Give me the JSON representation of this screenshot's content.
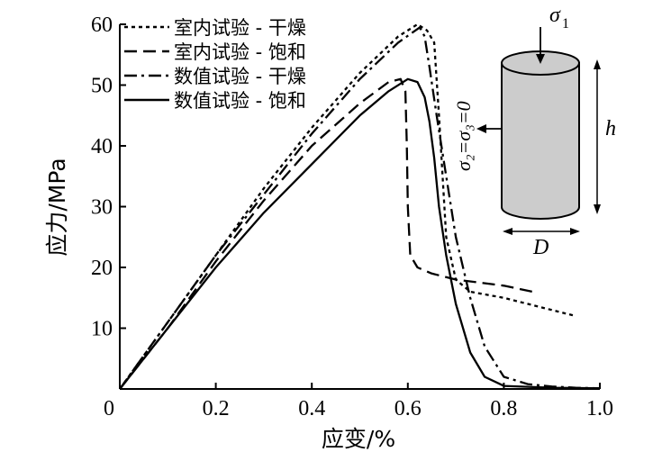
{
  "chart_data": {
    "type": "line",
    "xlabel": "应变/%",
    "ylabel": "应力/MPa",
    "xlim": [
      0,
      1.0
    ],
    "ylim": [
      0,
      60
    ],
    "x_ticks": [
      "0",
      "0.2",
      "0.4",
      "0.6",
      "0.8",
      "1.0"
    ],
    "y_ticks": [
      "10",
      "20",
      "30",
      "40",
      "50",
      "60"
    ],
    "legend_position": "top-left",
    "series": [
      {
        "name": "室内试验 - 干燥",
        "style": "dotted",
        "x": [
          0,
          0.1,
          0.2,
          0.3,
          0.4,
          0.5,
          0.58,
          0.62,
          0.64,
          0.655,
          0.665,
          0.68,
          0.7,
          0.73,
          0.8,
          0.9,
          0.95
        ],
        "y": [
          0,
          11,
          22,
          33,
          43,
          52,
          58,
          60,
          59,
          57,
          45,
          25,
          18,
          16,
          15,
          13,
          12
        ]
      },
      {
        "name": "室内试验 - 饱和",
        "style": "dashed",
        "x": [
          0,
          0.1,
          0.2,
          0.3,
          0.4,
          0.5,
          0.56,
          0.585,
          0.595,
          0.598,
          0.6,
          0.605,
          0.62,
          0.65,
          0.7,
          0.8,
          0.86
        ],
        "y": [
          0,
          10,
          21,
          31,
          40,
          47,
          50.5,
          51,
          49,
          40,
          30,
          22,
          20,
          19,
          18,
          17,
          16
        ]
      },
      {
        "name": "数值试验 - 干燥",
        "style": "dashdot",
        "x": [
          0,
          0.1,
          0.2,
          0.3,
          0.4,
          0.5,
          0.58,
          0.625,
          0.635,
          0.645,
          0.66,
          0.68,
          0.7,
          0.73,
          0.76,
          0.8,
          0.85,
          0.9,
          0.95,
          1.0
        ],
        "y": [
          0,
          11,
          22,
          32,
          42,
          51,
          57,
          59.5,
          58,
          53,
          45,
          35,
          25,
          15,
          7,
          2,
          0.8,
          0.4,
          0.2,
          0.1
        ]
      },
      {
        "name": "数值试验 - 饱和",
        "style": "solid",
        "x": [
          0,
          0.1,
          0.2,
          0.3,
          0.4,
          0.5,
          0.56,
          0.6,
          0.62,
          0.635,
          0.645,
          0.655,
          0.665,
          0.68,
          0.7,
          0.73,
          0.76,
          0.8,
          0.9,
          1.0
        ],
        "y": [
          0,
          10,
          20,
          29,
          37,
          45,
          49,
          51,
          50.5,
          48,
          44,
          38,
          30,
          22,
          14,
          6,
          2,
          0.5,
          0.2,
          0.1
        ]
      }
    ],
    "annotations": {
      "sigma1": "σ",
      "sigma1_sub": "1",
      "sigma_eq": "σ₂=σ₃=0",
      "h": "h",
      "d": "D"
    }
  }
}
